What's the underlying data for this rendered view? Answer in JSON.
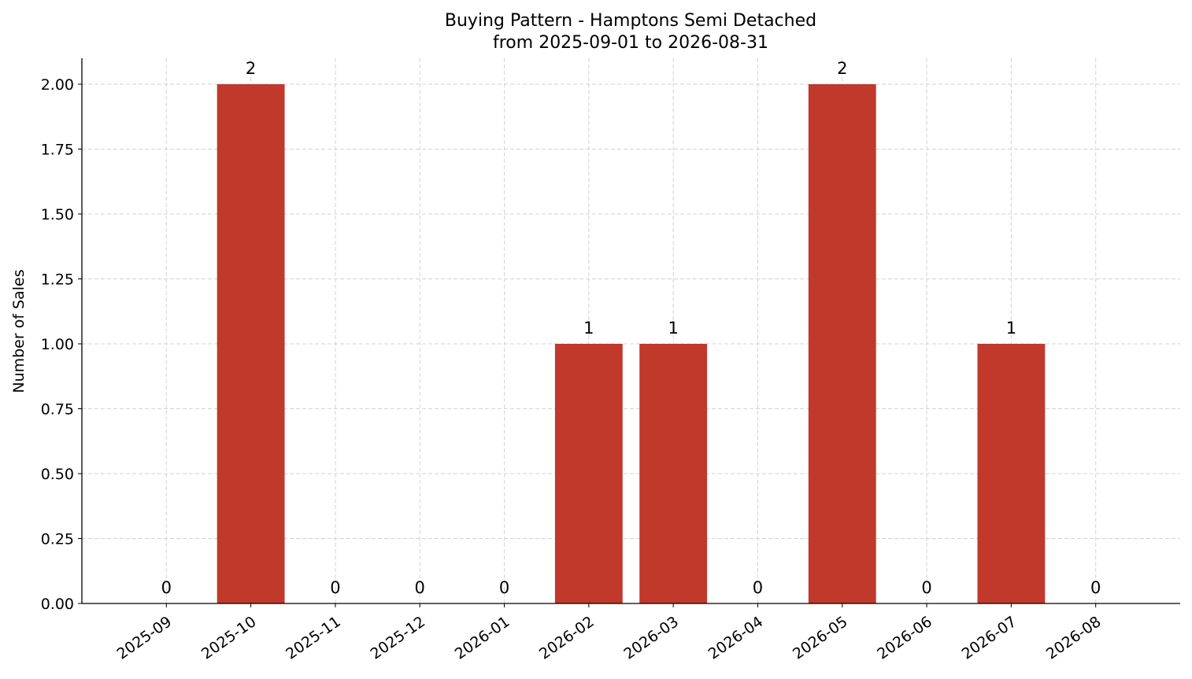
{
  "chart_data": {
    "type": "bar",
    "title": "Buying Pattern - Hamptons Semi Detached",
    "subtitle": "from 2025-09-01 to 2026-08-31",
    "y_label": "Number of Sales",
    "categories": [
      "2025-09",
      "2025-10",
      "2025-11",
      "2025-12",
      "2026-01",
      "2026-02",
      "2026-03",
      "2026-04",
      "2026-05",
      "2026-06",
      "2026-07",
      "2026-08"
    ],
    "values": [
      0,
      2,
      0,
      0,
      0,
      1,
      1,
      0,
      2,
      0,
      1,
      0
    ],
    "color": "#c0392b",
    "ylim": [
      0,
      2.1
    ],
    "yticks": [
      {
        "value": 0,
        "label": "0.00"
      },
      {
        "value": 0.25,
        "label": "0.25"
      },
      {
        "value": 0.5,
        "label": "0.50"
      },
      {
        "value": 0.75,
        "label": "0.75"
      },
      {
        "value": 1,
        "label": "1.00"
      },
      {
        "value": 1.25,
        "label": "1.25"
      },
      {
        "value": 1.5,
        "label": "1.50"
      },
      {
        "value": 1.75,
        "label": "1.75"
      },
      {
        "value": 2,
        "label": "2.00"
      }
    ],
    "grid": true
  }
}
